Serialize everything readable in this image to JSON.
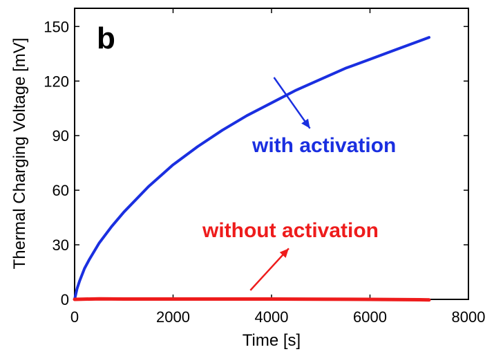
{
  "chart_data": {
    "type": "line",
    "panel_label": "b",
    "xlabel": "Time [s]",
    "ylabel": "Thermal Charging Voltage [mV]",
    "xlim": [
      0,
      8000
    ],
    "ylim": [
      0,
      160
    ],
    "xticks": [
      0,
      2000,
      4000,
      6000,
      8000
    ],
    "yticks": [
      0,
      30,
      60,
      90,
      120,
      150
    ],
    "grid": false,
    "series": [
      {
        "name": "with activation",
        "color": "#1a2fe0",
        "x": [
          0,
          50,
          100,
          200,
          300,
          500,
          750,
          1000,
          1500,
          2000,
          2500,
          3000,
          3500,
          4000,
          4500,
          5000,
          5500,
          6000,
          6500,
          7000,
          7200
        ],
        "y": [
          0,
          6,
          10,
          17,
          22,
          31,
          40,
          48,
          62,
          74,
          84,
          93,
          101,
          108,
          115,
          121,
          127,
          132,
          137,
          142,
          144
        ]
      },
      {
        "name": "without activation",
        "color": "#ee1c1c",
        "x": [
          0,
          500,
          1000,
          2000,
          3000,
          4000,
          5000,
          6000,
          7000,
          7200
        ],
        "y": [
          0,
          0.3,
          0.2,
          0.2,
          0.2,
          0.2,
          0.1,
          0,
          -0.2,
          -0.3
        ]
      }
    ],
    "annotations": [
      {
        "text": "with activation",
        "color": "#1a2fe0",
        "arrow_from": [
          4050,
          122
        ],
        "arrow_to": [
          4780,
          94
        ]
      },
      {
        "text": "without activation",
        "color": "#ee1c1c",
        "arrow_from": [
          3570,
          5
        ],
        "arrow_to": [
          4350,
          28
        ]
      }
    ]
  }
}
